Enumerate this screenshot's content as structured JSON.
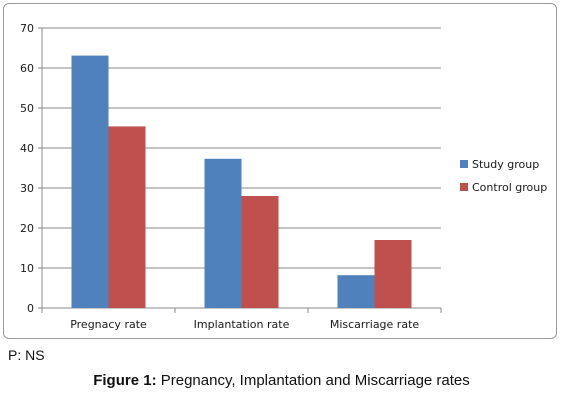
{
  "chart_data": {
    "type": "bar",
    "categories": [
      "Pregnacy rate",
      "Implantation rate",
      "Miscarriage rate"
    ],
    "series": [
      {
        "name": "Study group",
        "color": "#4F81BD",
        "values": [
          63.1,
          37.3,
          8.2
        ]
      },
      {
        "name": "Control group",
        "color": "#C0504D",
        "values": [
          45.4,
          28.0,
          17.0
        ]
      }
    ],
    "ylim": [
      0,
      70
    ],
    "yticks": [
      0,
      10,
      20,
      30,
      40,
      50,
      60,
      70
    ],
    "grid": true,
    "legend_position": "right"
  },
  "note": "P: NS",
  "caption": {
    "label": "Figure 1:",
    "text": " Pregnancy, Implantation and Miscarriage rates"
  }
}
